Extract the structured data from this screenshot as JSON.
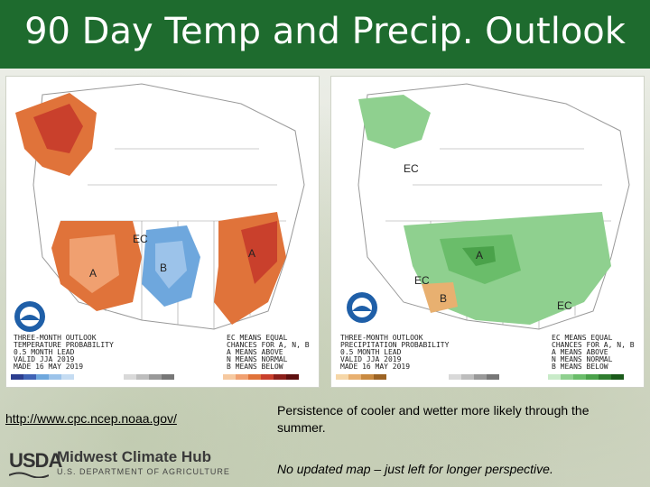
{
  "slide": {
    "title": "90 Day Temp and Precip. Outlook",
    "link": "http://www.cpc.ncep.noaa.gov/",
    "note1": "Persistence of cooler and wetter more likely through the summer.",
    "note2": "No updated map – just left for longer perspective."
  },
  "logo": {
    "agency": "USDA",
    "hub": "Midwest Climate Hub",
    "dept": "U.S. DEPARTMENT OF AGRICULTURE"
  },
  "temp_map": {
    "header": [
      "THREE-MONTH OUTLOOK",
      "TEMPERATURE PROBABILITY",
      "0.5 MONTH LEAD",
      "VALID JJA 2019",
      "MADE 16 MAY 2019"
    ],
    "legend_key": [
      "EC MEANS EQUAL",
      "CHANCES FOR A, N, B",
      "A MEANS ABOVE",
      "N MEANS NORMAL",
      "B MEANS BELOW"
    ],
    "labels": [
      "EC",
      "A",
      "B",
      "A"
    ],
    "colors": {
      "below": "#6ea7dd",
      "above": "#e0733a",
      "above_strong": "#c9402c"
    }
  },
  "precip_map": {
    "header": [
      "THREE-MONTH OUTLOOK",
      "PRECIPITATION PROBABILITY",
      "0.5 MONTH LEAD",
      "VALID JJA 2019",
      "MADE 16 MAY 2019"
    ],
    "legend_key": [
      "EC MEANS EQUAL",
      "CHANCES FOR A, N, B",
      "A MEANS ABOVE",
      "N MEANS NORMAL",
      "B MEANS BELOW"
    ],
    "labels": [
      "EC",
      "EC",
      "A",
      "B",
      "EC"
    ],
    "colors": {
      "above": "#8fd08f",
      "above_strong": "#4aa24a",
      "below": "#e8b070"
    }
  }
}
